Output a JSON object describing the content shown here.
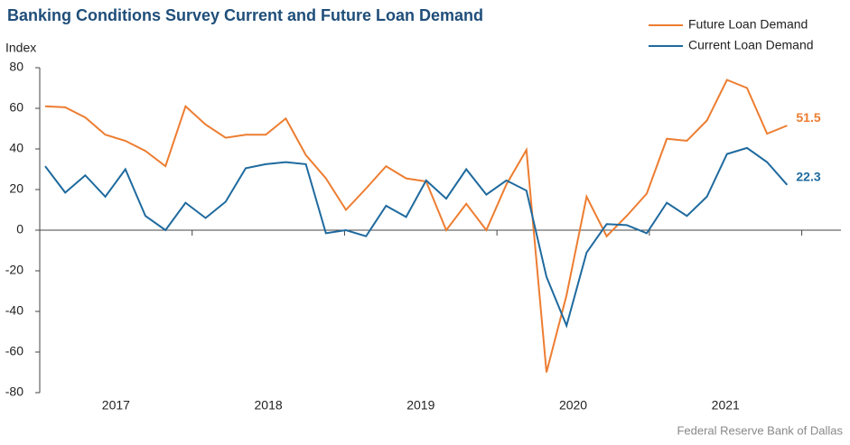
{
  "chart_data": {
    "type": "line",
    "title": "Banking Conditions Survey Current and Future Loan Demand",
    "y_label": "Index",
    "source": "Federal Reserve Bank of Dallas",
    "categories": [
      null,
      null,
      null,
      null,
      null,
      null,
      null,
      null,
      null,
      null,
      null,
      null,
      null,
      null,
      null,
      null,
      null,
      null,
      null,
      null,
      null,
      null,
      null,
      null,
      null,
      null,
      null,
      null,
      null,
      null,
      null,
      null,
      null,
      null,
      null,
      null,
      null,
      null
    ],
    "year_labels": [
      "2017",
      "2018",
      "2019",
      "2020",
      "2021"
    ],
    "ylim": [
      -80,
      80
    ],
    "yticks": [
      -80,
      -60,
      -40,
      -20,
      0,
      20,
      40,
      60,
      80
    ],
    "legend": "upper right",
    "series": [
      {
        "name": "Future Loan Demand",
        "color": "#ED7D31",
        "values": [
          61,
          60.5,
          55.5,
          47,
          44,
          39,
          31.5,
          61,
          52,
          45.5,
          47,
          47,
          55,
          37,
          25.5,
          10,
          20.5,
          31.5,
          25.5,
          24,
          0,
          13,
          0,
          22.5,
          39.5,
          -70,
          -32,
          16.5,
          -3,
          7,
          18,
          45,
          44,
          54,
          74,
          70,
          47.5,
          51.5
        ]
      },
      {
        "name": "Current Loan Demand",
        "color": "#1F6A9E",
        "values": [
          31.5,
          18.5,
          27,
          16.5,
          30,
          7,
          0,
          13.5,
          6,
          14,
          30.5,
          32.5,
          33.5,
          32.5,
          -1.5,
          0,
          -3,
          12,
          6.5,
          24.5,
          15.5,
          30,
          17.5,
          24.5,
          19.5,
          -23,
          -47,
          -11,
          3,
          2.5,
          -1.5,
          13.5,
          7,
          16.5,
          37.5,
          40.5,
          33.5,
          22.3
        ]
      }
    ]
  }
}
